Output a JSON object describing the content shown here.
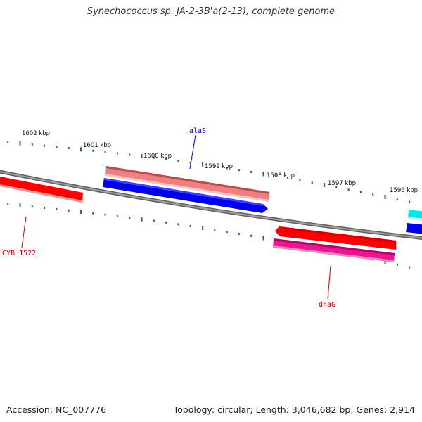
{
  "title": "Synechococcus sp. JA-2-3B'a(2-13), complete genome",
  "footer": {
    "accession": "Accession: NC_007776",
    "topology": "Topology: circular; Length: 3,046,682 bp; Genes: 2,914"
  },
  "scale_labels": [
    "1602 kbp",
    "1601 kbp",
    "1600 kbp",
    "1599 kbp",
    "1598 kbp",
    "1597 kbp",
    "1596 kbp"
  ],
  "gene_labels": [
    {
      "name": "alaS",
      "color": "#0000cc"
    },
    {
      "name": "CYB_1522",
      "color": "#cc0000"
    },
    {
      "name": "dnaG",
      "color": "#cc0000"
    }
  ],
  "colors": {
    "backbone": "#808080",
    "tick": "#1a7a1a",
    "forward_cds": "#ff0000",
    "reverse_cds": "#0000ee",
    "pink_feature": "#f08080",
    "magenta_feature": "#ee1493",
    "cyan_feature": "#00e5ee"
  }
}
